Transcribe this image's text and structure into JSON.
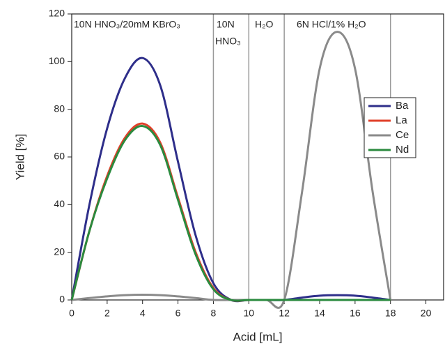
{
  "chart_data": {
    "type": "line",
    "xlabel": "Acid [mL]",
    "ylabel": "Yield [%]",
    "x": [
      0,
      1,
      2,
      3,
      4,
      5,
      6,
      7,
      8,
      9,
      10,
      11,
      12,
      13,
      14,
      15,
      16,
      17,
      18
    ],
    "series": [
      {
        "name": "Ba",
        "color": "#2e2e8a",
        "values": [
          0,
          40,
          72,
          93,
          101.5,
          90,
          58,
          27,
          7,
          0,
          0,
          0,
          0,
          1,
          1.8,
          2,
          1.8,
          1,
          0
        ]
      },
      {
        "name": "La",
        "color": "#e0402a",
        "values": [
          0,
          29,
          52,
          68,
          74,
          66,
          43,
          20,
          5,
          0,
          0,
          0,
          0,
          0,
          0,
          0,
          0,
          0,
          0
        ]
      },
      {
        "name": "Ce",
        "color": "#8a8a8a",
        "values": [
          0,
          0.8,
          1.5,
          2,
          2.2,
          2,
          1.5,
          0.8,
          0,
          0,
          0,
          0,
          0,
          45,
          97,
          112.5,
          97,
          45,
          0
        ]
      },
      {
        "name": "Nd",
        "color": "#2a8a3e",
        "values": [
          0,
          29,
          51,
          67,
          73,
          65,
          42,
          19,
          4.5,
          0,
          0,
          0,
          0,
          0,
          0,
          0,
          0,
          0,
          0
        ]
      }
    ],
    "vlines": [
      8,
      10,
      12,
      18
    ],
    "annotations": [
      "10N HNO₃/20mM KBrO₃",
      "10N",
      "HNO₃",
      "H₂O",
      "6N HCl/1% H₂O"
    ],
    "xlim": [
      0,
      21
    ],
    "xticks": [
      0,
      2,
      4,
      6,
      8,
      10,
      12,
      14,
      16,
      18,
      20
    ],
    "ylim": [
      0,
      120
    ],
    "yticks": [
      0,
      20,
      40,
      60,
      80,
      100,
      120
    ],
    "legend": "upper right"
  }
}
